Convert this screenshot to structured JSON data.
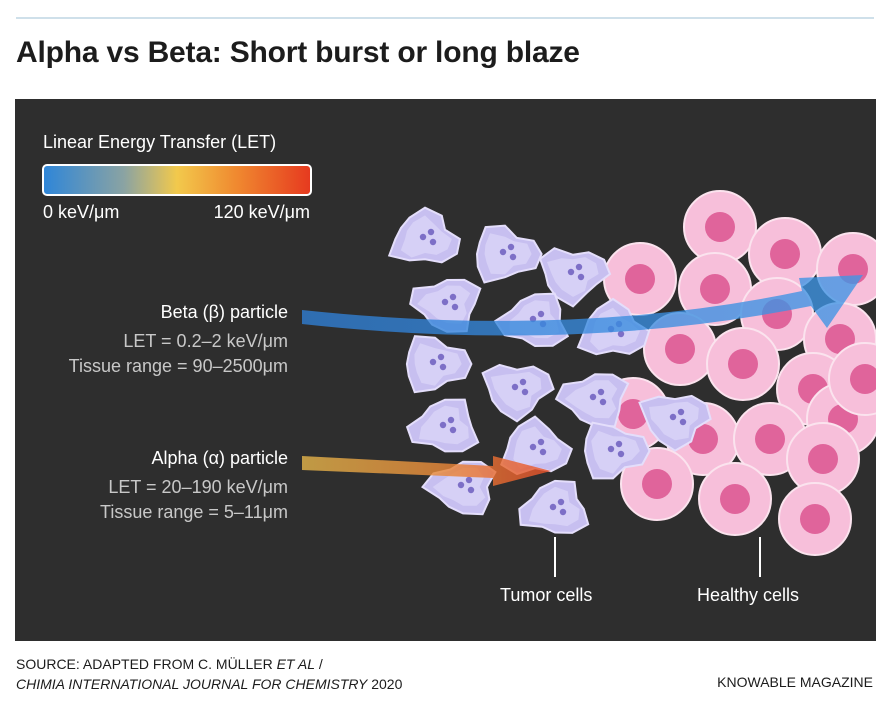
{
  "title": "Alpha vs Beta: Short burst or long blaze",
  "legend": {
    "title": "Linear Energy Transfer (LET)",
    "min_label": "0 keV/μm",
    "max_label": "120 keV/μm",
    "gradient_colors": [
      "#2f86d8",
      "#f2c94c",
      "#e63a1f"
    ]
  },
  "beta": {
    "title": "Beta (β) particle",
    "let": "LET = 0.2–2 keV/μm",
    "range": "Tissue range = 90–2500μm",
    "color": "#2f86d8"
  },
  "alpha": {
    "title": "Alpha (α) particle",
    "let": "LET = 20–190 keV/μm",
    "range": "Tissue range = 5–11μm",
    "color": "#e8572a"
  },
  "labels": {
    "tumor": "Tumor cells",
    "healthy": "Healthy cells"
  },
  "colors": {
    "background": "#2e2e2e",
    "tumor_cell": "#c7bff0",
    "healthy_cell": "#f7bfda",
    "healthy_nucleus": "#e0649b"
  },
  "footer": {
    "source_line1_prefix": "SOURCE: ADAPTED FROM C. MÜLLER ",
    "source_line1_italic": "ET AL",
    "source_line1_suffix": " /",
    "source_line2_italic": "CHIMIA INTERNATIONAL JOURNAL FOR CHEMISTRY",
    "source_line2_suffix": " 2020",
    "brand": "KNOWABLE MAGAZINE"
  }
}
